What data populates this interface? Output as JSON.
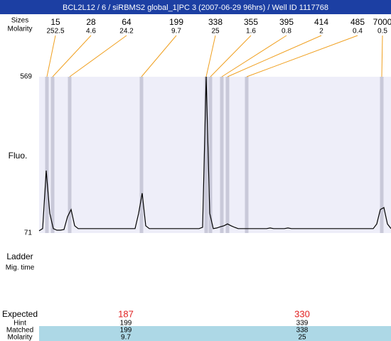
{
  "header": {
    "title": "BCL2L12 / 6 / siRBMS2 global_1|PC 3 (2007-06-29 96hrs) / Well ID 1117768"
  },
  "chart_data": {
    "type": "line",
    "ylabel": "Fluo.",
    "ylim": [
      71,
      569
    ],
    "yticks": [
      71,
      569
    ],
    "peaks": {
      "size_label": "Sizes",
      "molarity_label": "Molarity",
      "sizes": [
        15,
        28,
        64,
        199,
        338,
        355,
        395,
        414,
        485,
        7000
      ],
      "molarity": [
        252.5,
        4.6,
        24.2,
        9.7,
        25,
        1.6,
        0.8,
        2,
        0.4,
        0.5
      ]
    },
    "series": [
      {
        "color": "#000000",
        "values": [
          78,
          85,
          270,
          134,
          85,
          80,
          80,
          82,
          123,
          146,
          94,
          85,
          85,
          85,
          85,
          85,
          85,
          85,
          85,
          85,
          85,
          85,
          85,
          85,
          85,
          85,
          85,
          85,
          134,
          198,
          94,
          85,
          85,
          85,
          85,
          85,
          85,
          85,
          85,
          85,
          85,
          85,
          85,
          85,
          85,
          85,
          89,
          569,
          134,
          85,
          87,
          91,
          94,
          100,
          94,
          89,
          85,
          85,
          85,
          85,
          85,
          85,
          85,
          85,
          85,
          87,
          85,
          85,
          85,
          85,
          87,
          85,
          85,
          85,
          85,
          85,
          85,
          85,
          85,
          85,
          85,
          85,
          85,
          85,
          85,
          85,
          85,
          85,
          85,
          85,
          85,
          85,
          85,
          85,
          85,
          100,
          146,
          152,
          100,
          85
        ]
      }
    ]
  },
  "ladder": {
    "label": "Ladder",
    "sublabel": "Mig. time"
  },
  "table": {
    "rows": [
      {
        "label": "Expected",
        "values": [
          187,
          330
        ]
      },
      {
        "label": "Hint",
        "values": [
          199,
          339
        ]
      },
      {
        "label": "Matched",
        "values": [
          199,
          338
        ]
      },
      {
        "label": "Molarity",
        "values": [
          9.7,
          25
        ]
      }
    ]
  }
}
